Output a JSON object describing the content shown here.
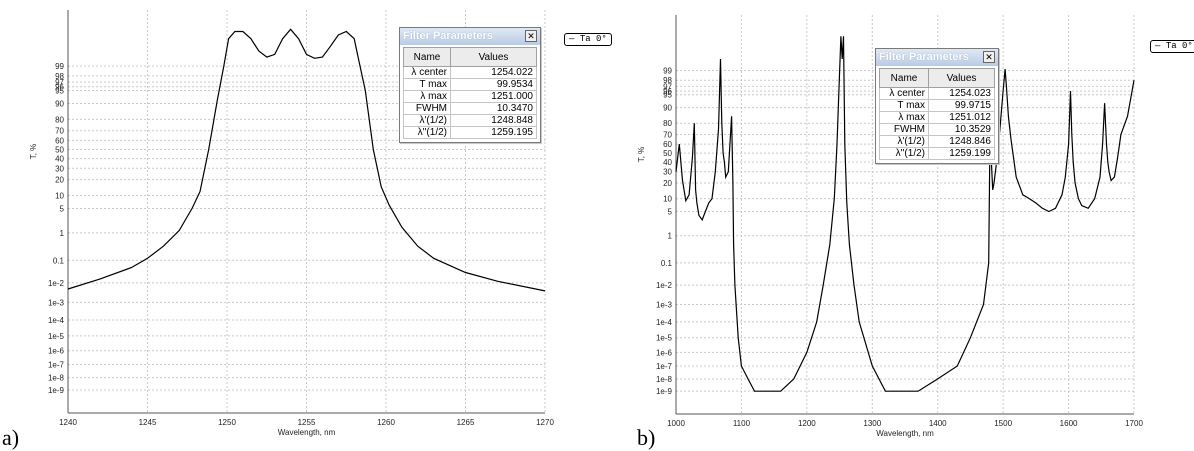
{
  "panel_labels": {
    "a": "a)",
    "b": "b)"
  },
  "filter_params_a": {
    "title": "Filter Parameters",
    "headers": [
      "Name",
      "Values"
    ],
    "rows": [
      {
        "name": "λ center",
        "value": "1254.022"
      },
      {
        "name": "T max",
        "value": "99.9534"
      },
      {
        "name": "λ max",
        "value": "1251.000"
      },
      {
        "name": "FWHM",
        "value": "10.3470"
      },
      {
        "name": "λ'(1/2)",
        "value": "1248.848"
      },
      {
        "name": "λ''(1/2)",
        "value": "1259.195"
      }
    ]
  },
  "filter_params_b": {
    "title": "Filter Parameters",
    "headers": [
      "Name",
      "Values"
    ],
    "rows": [
      {
        "name": "λ center",
        "value": "1254.023"
      },
      {
        "name": "T max",
        "value": "99.9715"
      },
      {
        "name": "λ max",
        "value": "1251.012"
      },
      {
        "name": "FWHM",
        "value": "10.3529"
      },
      {
        "name": "λ'(1/2)",
        "value": "1248.846"
      },
      {
        "name": "λ''(1/2)",
        "value": "1259.199"
      }
    ]
  },
  "chart_data": [
    {
      "type": "line",
      "xlabel": "Wavelength, nm",
      "ylabel": "T, %",
      "xlim": [
        1240,
        1270
      ],
      "scale": "probability (normal-probit) T axis",
      "x_ticks": [
        1240,
        1245,
        1250,
        1255,
        1260,
        1265,
        1270
      ],
      "y_tick_labels": [
        "99",
        "98",
        "97",
        "96",
        "95",
        "90",
        "80",
        "70",
        "60",
        "50",
        "40",
        "30",
        "20",
        "10",
        "5",
        "1",
        "0.1",
        "1e-2",
        "1e-3",
        "1e-4",
        "1e-5",
        "1e-6",
        "1e-7",
        "1e-8",
        "1e-9"
      ],
      "legend": "Ta 0°",
      "grid": true,
      "series": [
        {
          "x": [
            1240,
            1242,
            1244,
            1245,
            1246,
            1247,
            1247.8,
            1248.3,
            1248.85,
            1249.4,
            1249.8,
            1250.1,
            1250.5,
            1251,
            1251.5,
            1252,
            1252.5,
            1253,
            1253.5,
            1254.0,
            1254.5,
            1255,
            1255.5,
            1256,
            1256.5,
            1257,
            1257.5,
            1258.0,
            1258.3,
            1258.7,
            1259.2,
            1259.7,
            1260.2,
            1261,
            1262,
            1263,
            1265,
            1267,
            1270
          ],
          "y": [
            0.005,
            0.015,
            0.05,
            0.12,
            0.35,
            1.2,
            5,
            12,
            50,
            92,
            99,
            99.9,
            99.95,
            99.95,
            99.9,
            99.7,
            99.5,
            99.6,
            99.9,
            99.96,
            99.9,
            99.6,
            99.45,
            99.5,
            99.8,
            99.93,
            99.95,
            99.9,
            99.3,
            95,
            50,
            15,
            6,
            1.5,
            0.35,
            0.12,
            0.03,
            0.012,
            0.004
          ]
        }
      ]
    },
    {
      "type": "line",
      "xlabel": "Wavelength, nm",
      "ylabel": "T, %",
      "xlim": [
        1000,
        1700
      ],
      "scale": "probability (normal-probit) T axis",
      "x_ticks": [
        1000,
        1100,
        1200,
        1300,
        1400,
        1500,
        1600,
        1700
      ],
      "y_tick_labels": [
        "99",
        "98",
        "97",
        "96",
        "95",
        "90",
        "80",
        "70",
        "60",
        "50",
        "40",
        "30",
        "20",
        "10",
        "5",
        "1",
        "0.1",
        "1e-2",
        "1e-3",
        "1e-4",
        "1e-5",
        "1e-6",
        "1e-7",
        "1e-8",
        "1e-9"
      ],
      "legend": "Ta 0°",
      "grid": true,
      "series": [
        {
          "x": [
            1000,
            1005,
            1010,
            1015,
            1020,
            1025,
            1028,
            1030,
            1032,
            1035,
            1040,
            1045,
            1050,
            1055,
            1060,
            1065,
            1068,
            1070,
            1072,
            1074,
            1076,
            1080,
            1085,
            1087,
            1088,
            1090,
            1095,
            1100,
            1110,
            1120,
            1140,
            1160,
            1180,
            1200,
            1215,
            1225,
            1235,
            1242,
            1246,
            1249,
            1252,
            1254,
            1256,
            1258,
            1261,
            1265,
            1272,
            1280,
            1300,
            1320,
            1340,
            1370,
            1400,
            1430,
            1450,
            1470,
            1478,
            1480,
            1482,
            1484,
            1486,
            1490,
            1495,
            1500,
            1503,
            1505,
            1508,
            1512,
            1520,
            1530,
            1540,
            1550,
            1560,
            1570,
            1580,
            1590,
            1595,
            1600,
            1603,
            1605,
            1607,
            1610,
            1615,
            1620,
            1630,
            1640,
            1648,
            1652,
            1655,
            1658,
            1660,
            1662,
            1665,
            1670,
            1675,
            1680,
            1690,
            1700
          ],
          "y": [
            30,
            60,
            22,
            9,
            12,
            45,
            80,
            15,
            8,
            4,
            3,
            5,
            8,
            10,
            30,
            75,
            99.6,
            80,
            50,
            40,
            25,
            30,
            85,
            20,
            0.5,
            0.01,
            1e-05,
            1e-07,
            1e-08,
            1e-09,
            1e-09,
            1e-09,
            1e-08,
            1e-06,
            0.0001,
            0.01,
            0.5,
            10,
            60,
            96,
            99.95,
            99.6,
            99.95,
            60,
            8,
            0.5,
            0.01,
            0.0001,
            1e-07,
            1e-09,
            1e-09,
            1e-09,
            1e-08,
            1e-07,
            1e-05,
            0.001,
            0.1,
            80,
            40,
            15,
            20,
            40,
            75,
            96,
            99.1,
            97,
            85,
            65,
            25,
            12,
            10,
            8,
            6,
            5,
            6,
            12,
            25,
            60,
            96,
            70,
            40,
            20,
            10,
            7,
            6,
            10,
            25,
            60,
            92,
            60,
            40,
            30,
            22,
            25,
            45,
            70,
            85,
            98
          ]
        }
      ]
    }
  ]
}
